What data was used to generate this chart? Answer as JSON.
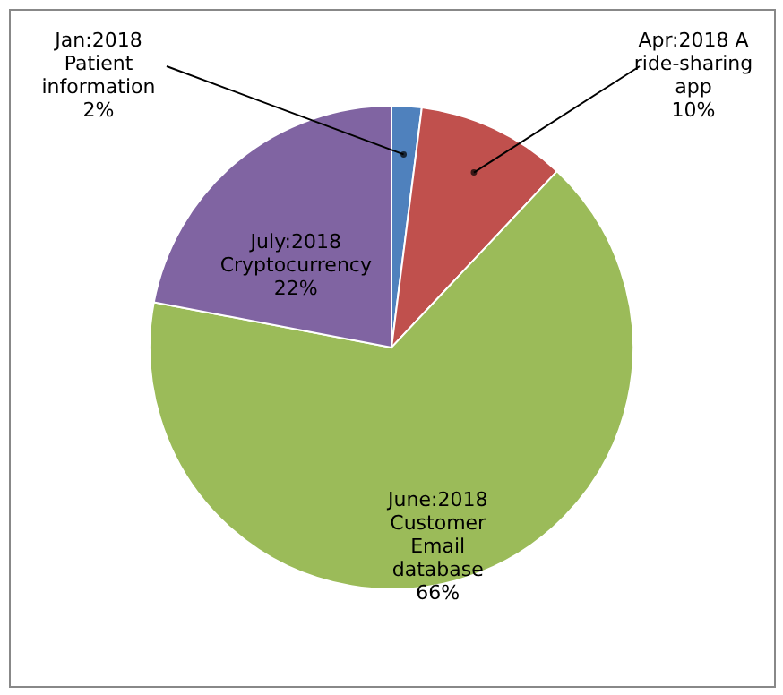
{
  "chart_data": {
    "type": "pie",
    "categories": [
      "Jan:2018 Patient information",
      "Apr:2018 A ride-sharing app",
      "June:2018 Customer Email database",
      "July:2018 Cryptocurrency"
    ],
    "values": [
      2,
      10,
      66,
      22
    ],
    "value_labels": [
      "2%",
      "10%",
      "66%",
      "22%"
    ],
    "colors": [
      "#4f81bd",
      "#c0504d",
      "#9bbb59",
      "#8064a2"
    ]
  }
}
